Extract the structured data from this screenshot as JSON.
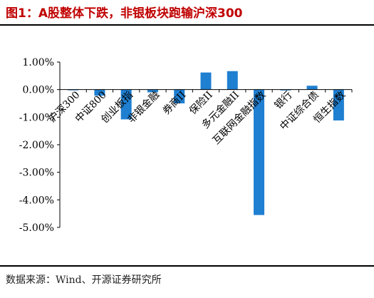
{
  "header": {
    "title": "图1：A股整体下跌，非银板块跑输沪深300"
  },
  "footer": {
    "source": "数据来源：Wind、开源证券研究所"
  },
  "colors": {
    "title": "#c00000",
    "bar": "#1f7fd1",
    "axis": "#000000"
  },
  "chart_data": {
    "type": "bar",
    "categories": [
      "沪深300",
      "中证800",
      "创业板指",
      "非银金融",
      "券商II",
      "保险II",
      "多元金融II",
      "互联网金融指数",
      "银行",
      "中证综合债",
      "恒生指数"
    ],
    "values": [
      -0.02,
      -0.22,
      -1.08,
      -0.1,
      -0.5,
      0.62,
      0.67,
      -4.55,
      -0.03,
      0.14,
      -1.12
    ],
    "ylim": [
      -5.0,
      1.0
    ],
    "yticks": [
      "1.00%",
      "0.00%",
      "-1.00%",
      "-2.00%",
      "-3.00%",
      "-4.00%",
      "-5.00%"
    ],
    "ytick_values": [
      1,
      0,
      -1,
      -2,
      -3,
      -4,
      -5
    ],
    "grid": false,
    "xlabel": "",
    "ylabel": ""
  }
}
